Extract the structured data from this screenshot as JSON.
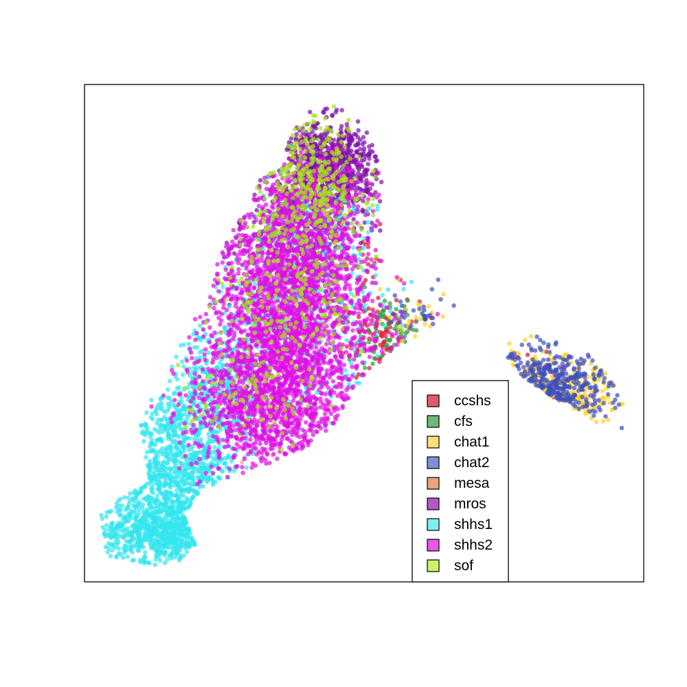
{
  "chart_data": {
    "type": "scatter",
    "title": "",
    "xlabel": "",
    "ylabel": "",
    "axes_visible": false,
    "grid": false,
    "legend_position": "bottom-right",
    "point_alpha": 0.7,
    "series": [
      {
        "name": "ccshs",
        "color": "#DC143C",
        "legend_fill": "#E05A6A",
        "clusters": [
          {
            "center": [
              0.53,
              0.48
            ],
            "spread": [
              0.035,
              0.045
            ],
            "count": 90
          },
          {
            "center": [
              0.51,
              0.65
            ],
            "spread": [
              0.015,
              0.07
            ],
            "count": 25
          },
          {
            "center": [
              0.77,
              0.38
            ],
            "spread": [
              0.05,
              0.04
            ],
            "count": 15
          }
        ]
      },
      {
        "name": "cfs",
        "color": "#2E9E3A",
        "legend_fill": "#6DB87A",
        "clusters": [
          {
            "center": [
              0.54,
              0.49
            ],
            "spread": [
              0.035,
              0.04
            ],
            "count": 70
          }
        ]
      },
      {
        "name": "chat1",
        "color": "#FFD21F",
        "legend_fill": "#F7E07A",
        "clusters": [
          {
            "center": [
              0.84,
              0.36
            ],
            "spread": [
              0.07,
              0.045
            ],
            "count": 220
          },
          {
            "center": [
              0.6,
              0.53
            ],
            "spread": [
              0.035,
              0.03
            ],
            "count": 25
          },
          {
            "center": [
              0.5,
              0.82
            ],
            "spread": [
              0.02,
              0.04
            ],
            "count": 12
          }
        ]
      },
      {
        "name": "chat2",
        "color": "#3D4FC0",
        "legend_fill": "#7F8ED6",
        "clusters": [
          {
            "center": [
              0.84,
              0.38
            ],
            "spread": [
              0.06,
              0.04
            ],
            "count": 330
          },
          {
            "center": [
              0.62,
              0.55
            ],
            "spread": [
              0.04,
              0.025
            ],
            "count": 30
          }
        ]
      },
      {
        "name": "mesa",
        "color": "#F4A582",
        "legend_fill": "#EDA27C",
        "clusters": [
          {
            "center": [
              0.28,
              0.35
            ],
            "spread": [
              0.08,
              0.12
            ],
            "count": 25
          }
        ]
      },
      {
        "name": "mros",
        "color": "#7D0FA8",
        "legend_fill": "#AE5AC8",
        "clusters": [
          {
            "center": [
              0.43,
              0.86
            ],
            "spread": [
              0.055,
              0.05
            ],
            "count": 750
          },
          {
            "center": [
              0.37,
              0.73
            ],
            "spread": [
              0.06,
              0.05
            ],
            "count": 260
          },
          {
            "center": [
              0.33,
              0.6
            ],
            "spread": [
              0.06,
              0.06
            ],
            "count": 60
          }
        ]
      },
      {
        "name": "shhs1",
        "color": "#33E6EE",
        "legend_fill": "#7FEEEE",
        "clusters": [
          {
            "center": [
              0.14,
              0.18
            ],
            "spread": [
              0.06,
              0.1
            ],
            "count": 1000
          },
          {
            "center": [
              0.1,
              0.07
            ],
            "spread": [
              0.07,
              0.035
            ],
            "count": 420
          },
          {
            "center": [
              0.22,
              0.38
            ],
            "spread": [
              0.05,
              0.08
            ],
            "count": 380
          },
          {
            "center": [
              0.38,
              0.55
            ],
            "spread": [
              0.08,
              0.12
            ],
            "count": 420
          },
          {
            "center": [
              0.42,
              0.72
            ],
            "spread": [
              0.05,
              0.06
            ],
            "count": 100
          }
        ]
      },
      {
        "name": "shhs2",
        "color": "#E010E6",
        "legend_fill": "#E65AE6",
        "clusters": [
          {
            "center": [
              0.35,
              0.5
            ],
            "spread": [
              0.08,
              0.12
            ],
            "count": 2200
          },
          {
            "center": [
              0.3,
              0.33
            ],
            "spread": [
              0.07,
              0.07
            ],
            "count": 650
          },
          {
            "center": [
              0.36,
              0.68
            ],
            "spread": [
              0.06,
              0.06
            ],
            "count": 550
          },
          {
            "center": [
              0.4,
              0.8
            ],
            "spread": [
              0.05,
              0.05
            ],
            "count": 250
          }
        ]
      },
      {
        "name": "sof",
        "color": "#A8E020",
        "legend_fill": "#CCF266",
        "clusters": [
          {
            "center": [
              0.4,
              0.82
            ],
            "spread": [
              0.05,
              0.07
            ],
            "count": 360
          },
          {
            "center": [
              0.35,
              0.58
            ],
            "spread": [
              0.08,
              0.1
            ],
            "count": 240
          },
          {
            "center": [
              0.28,
              0.36
            ],
            "spread": [
              0.06,
              0.06
            ],
            "count": 80
          }
        ]
      }
    ],
    "xlim": [
      0,
      1
    ],
    "ylim": [
      0,
      1
    ]
  }
}
